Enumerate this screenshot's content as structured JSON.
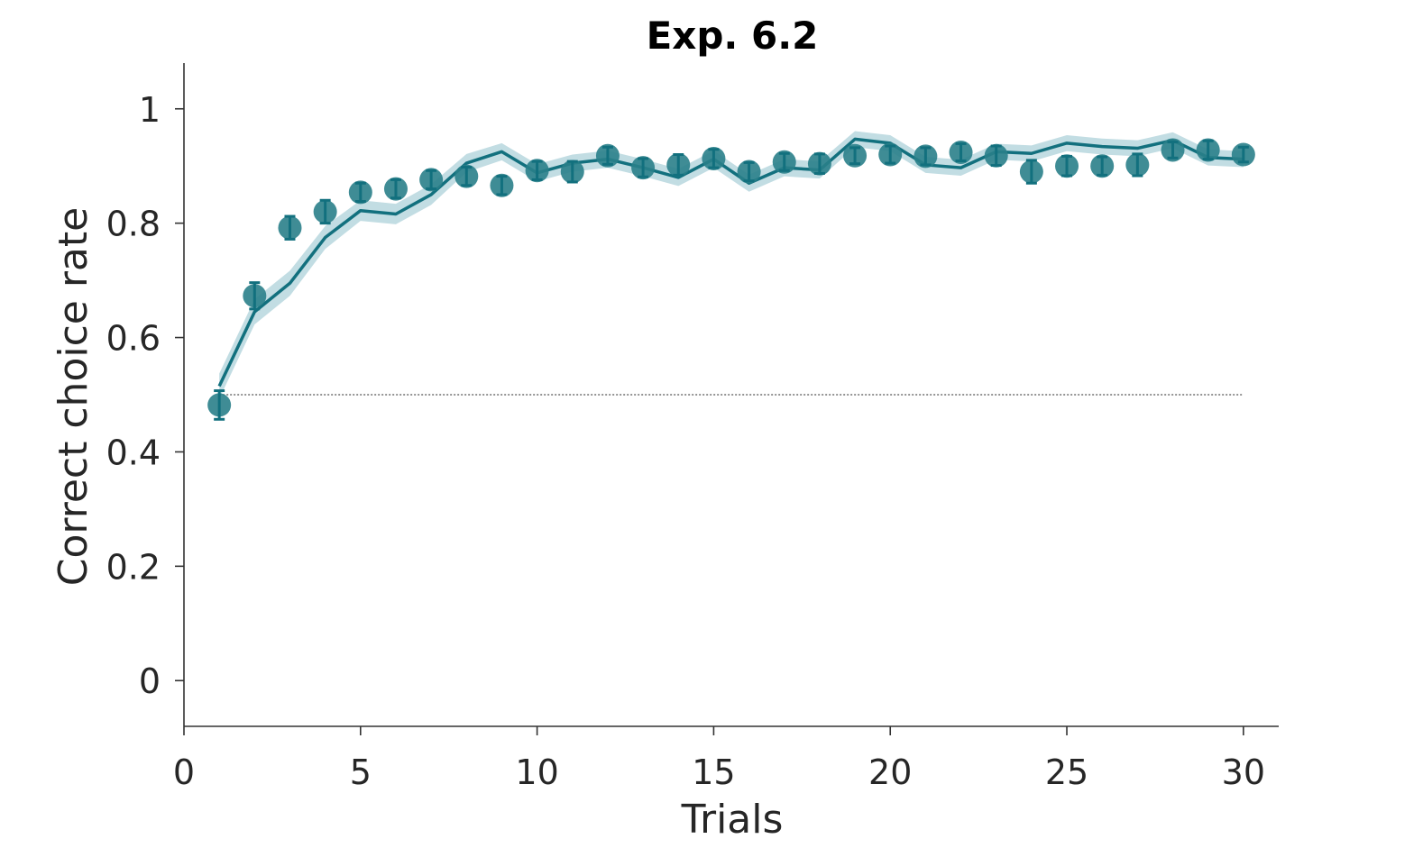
{
  "chart_data": {
    "type": "line",
    "title": "Exp. 6.2",
    "xlabel": "Trials",
    "ylabel": "Correct choice rate",
    "xlim": [
      0,
      31
    ],
    "ylim": [
      -0.08,
      1.08
    ],
    "xticks": [
      0,
      5,
      10,
      15,
      20,
      25,
      30
    ],
    "xtick_labels": [
      "0",
      "5",
      "10",
      "15",
      "20",
      "25",
      "30"
    ],
    "yticks": [
      0,
      0.2,
      0.4,
      0.6,
      0.8,
      1
    ],
    "ytick_labels": [
      "0",
      "0.2",
      "0.4",
      "0.6",
      "0.8",
      "1"
    ],
    "grid": false,
    "chance_level": 0.5,
    "colors": {
      "line": "#12707e",
      "band": "#c2dde3",
      "marker": "#2a7f8a",
      "chance": "#555555",
      "axis": "#333333"
    },
    "x": [
      1,
      2,
      3,
      4,
      5,
      6,
      7,
      8,
      9,
      10,
      11,
      12,
      13,
      14,
      15,
      16,
      17,
      18,
      19,
      20,
      21,
      22,
      23,
      24,
      25,
      26,
      27,
      28,
      29,
      30
    ],
    "series": [
      {
        "kind": "points",
        "values": [
          0.482,
          0.673,
          0.792,
          0.82,
          0.854,
          0.86,
          0.876,
          0.882,
          0.866,
          0.892,
          0.89,
          0.918,
          0.897,
          0.902,
          0.913,
          0.89,
          0.907,
          0.904,
          0.918,
          0.92,
          0.917,
          0.924,
          0.918,
          0.89,
          0.9,
          0.9,
          0.902,
          0.928,
          0.928,
          0.92
        ],
        "errors": [
          0.025,
          0.023,
          0.02,
          0.02,
          0.016,
          0.016,
          0.016,
          0.016,
          0.016,
          0.016,
          0.018,
          0.015,
          0.016,
          0.018,
          0.016,
          0.016,
          0.015,
          0.017,
          0.014,
          0.015,
          0.015,
          0.015,
          0.017,
          0.02,
          0.017,
          0.016,
          0.019,
          0.014,
          0.016,
          0.013
        ]
      },
      {
        "kind": "line",
        "values": [
          0.515,
          0.645,
          0.695,
          0.775,
          0.822,
          0.816,
          0.85,
          0.905,
          0.925,
          0.888,
          0.905,
          0.912,
          0.897,
          0.88,
          0.912,
          0.87,
          0.897,
          0.893,
          0.947,
          0.94,
          0.902,
          0.897,
          0.925,
          0.922,
          0.94,
          0.934,
          0.931,
          0.945,
          0.915,
          0.912
        ],
        "band": [
          0.022,
          0.022,
          0.022,
          0.02,
          0.018,
          0.018,
          0.018,
          0.016,
          0.015,
          0.015,
          0.015,
          0.015,
          0.015,
          0.015,
          0.015,
          0.015,
          0.015,
          0.015,
          0.014,
          0.014,
          0.014,
          0.014,
          0.014,
          0.014,
          0.014,
          0.014,
          0.014,
          0.014,
          0.014,
          0.014
        ]
      }
    ]
  }
}
